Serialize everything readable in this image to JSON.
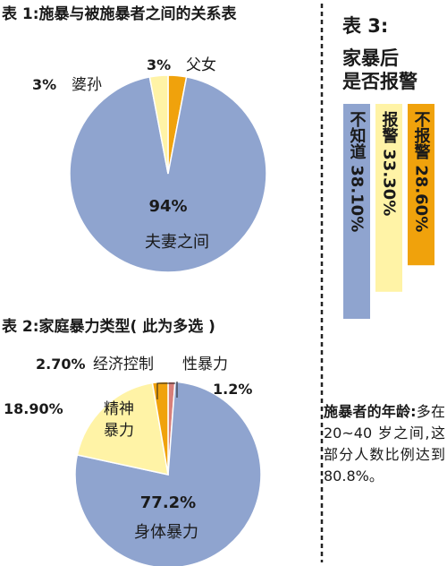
{
  "colors": {
    "blue": "#8fa4cf",
    "cream": "#fff3a6",
    "orange": "#f0a20c",
    "pink": "#d87f7a",
    "divider": "#222222"
  },
  "chart_data": [
    {
      "type": "pie",
      "title": "表 1:施暴与被施暴者之间的关系表",
      "slices": [
        {
          "label": "夫妻之间",
          "value": 94,
          "value_label": "94%"
        },
        {
          "label": "婆孙",
          "value": 3,
          "value_label": "3%"
        },
        {
          "label": "父女",
          "value": 3,
          "value_label": "3%"
        }
      ]
    },
    {
      "type": "pie",
      "title": "表 2:家庭暴力类型( 此为多选 )",
      "slices": [
        {
          "label": "身体暴力",
          "value": 77.2,
          "value_label": "77.2%"
        },
        {
          "label": "精神暴力",
          "value": 18.9,
          "value_label": "18.90%"
        },
        {
          "label": "经济控制",
          "value": 2.7,
          "value_label": "2.70%"
        },
        {
          "label": "性暴力",
          "value": 1.2,
          "value_label": "1.2%"
        }
      ]
    },
    {
      "type": "bar",
      "title": "表 3:家暴后是否报警",
      "title_lines": [
        "表 3:",
        "家暴后",
        "是否报警"
      ],
      "categories": [
        "不知道",
        "报警",
        "不报警"
      ],
      "values": [
        38.1,
        33.3,
        28.6
      ],
      "value_labels": [
        "38.10%",
        "33.30%",
        "28.60%"
      ]
    }
  ],
  "note": {
    "heading": "施暴者的年龄:",
    "text": "多在20~40 岁之间,这部分人数比例达到80.8%。"
  }
}
